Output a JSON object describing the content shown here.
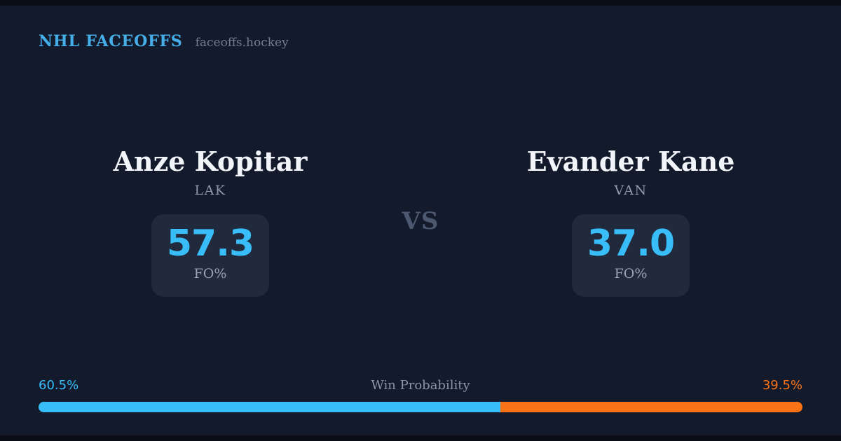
{
  "header": {
    "brand": "NHL FACEOFFS",
    "site": "faceoffs.hockey"
  },
  "matchup": {
    "vs_label": "VS",
    "players": [
      {
        "name": "Anze Kopitar",
        "team": "LAK",
        "stat_value": "57.3",
        "stat_label": "FO%"
      },
      {
        "name": "Evander Kane",
        "team": "VAN",
        "stat_value": "37.0",
        "stat_label": "FO%"
      }
    ]
  },
  "win_probability": {
    "title": "Win Probability",
    "left_pct_label": "60.5%",
    "right_pct_label": "39.5%",
    "left_value": 60.5,
    "right_value": 39.5
  },
  "colors": {
    "background": "#121a2b",
    "edge_strip": "#0a0d15",
    "card": "#202a3c",
    "accent_blue": "#38bdf8",
    "brand_blue": "#45aee8",
    "accent_orange": "#f97316",
    "text_primary": "#f1f4f8",
    "text_muted": "#8d97aa",
    "vs_text": "#4b5870"
  },
  "chart_data": {
    "type": "bar",
    "title": "Win Probability",
    "categories": [
      "Anze Kopitar (LAK)",
      "Evander Kane (VAN)"
    ],
    "series": [
      {
        "name": "Faceoff %",
        "values": [
          57.3,
          37.0
        ]
      },
      {
        "name": "Win Probability %",
        "values": [
          60.5,
          39.5
        ]
      }
    ],
    "xlabel": "",
    "ylabel": "",
    "ylim": [
      0,
      100
    ],
    "grid": false,
    "legend_position": "none"
  }
}
